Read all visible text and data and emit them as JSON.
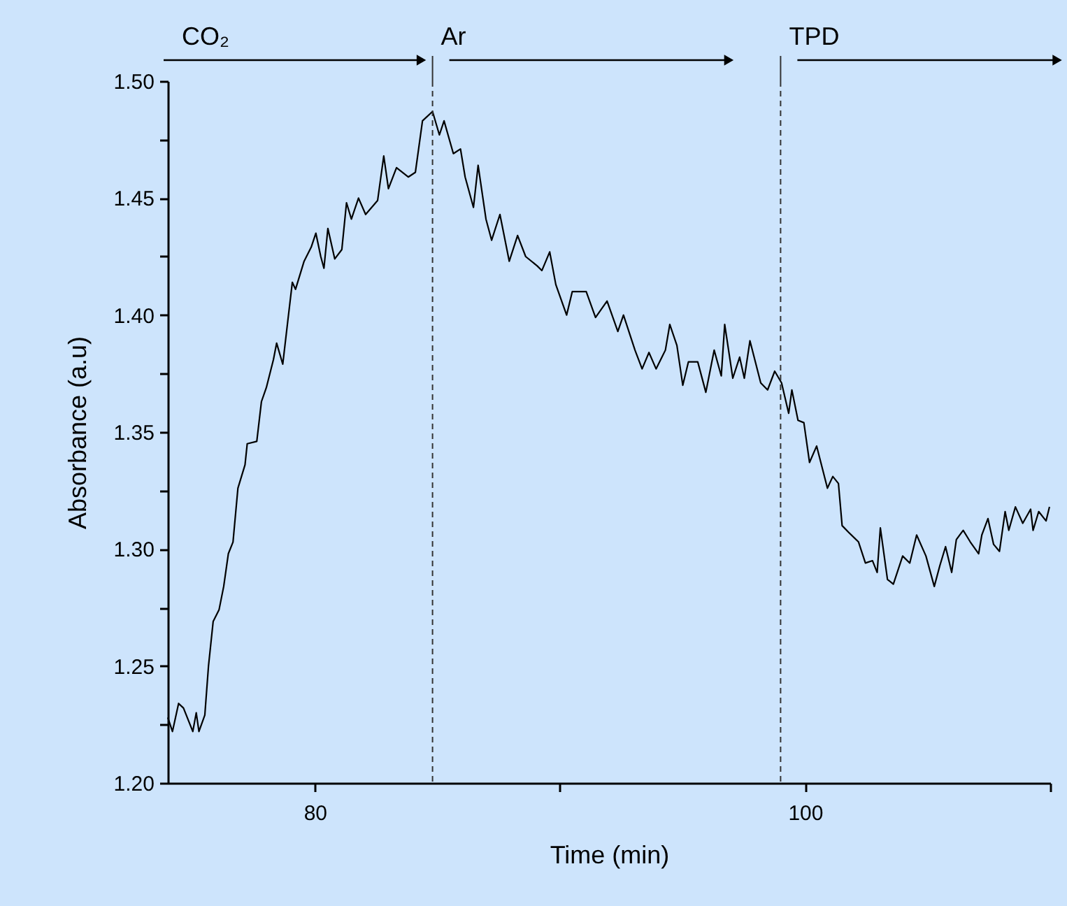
{
  "chart_data": {
    "type": "line",
    "xlabel": "Time (min)",
    "ylabel": "Absorbance (a.u)",
    "x": [
      74,
      74.19,
      74.44,
      74.64,
      75.02,
      75.16,
      75.27,
      75.51,
      75.66,
      75.85,
      76.09,
      76.28,
      76.47,
      76.66,
      76.86,
      77.15,
      77.24,
      77.63,
      77.82,
      78.02,
      78.31,
      78.44,
      78.69,
      78.89,
      79.08,
      79.21,
      79.56,
      79.85,
      80.04,
      80.24,
      80.37,
      80.53,
      80.81,
      81.1,
      81.29,
      81.49,
      81.78,
      82.07,
      82.56,
      82.81,
      83.0,
      83.33,
      83.81,
      84.1,
      84.39,
      84.8,
      85.08,
      85.27,
      85.65,
      85.94,
      86.13,
      86.47,
      86.66,
      86.98,
      87.21,
      87.55,
      87.93,
      88.27,
      88.6,
      89.07,
      89.26,
      89.58,
      89.83,
      90.27,
      90.5,
      91.07,
      91.45,
      91.92,
      92.36,
      92.59,
      93.06,
      93.35,
      93.63,
      93.92,
      94.3,
      94.48,
      94.77,
      95.01,
      95.24,
      95.62,
      95.95,
      96.29,
      96.58,
      96.72,
      97.05,
      97.33,
      97.52,
      97.75,
      98.19,
      98.47,
      98.76,
      99.04,
      99.33,
      99.46,
      99.71,
      99.95,
      100.18,
      100.47,
      100.91,
      101.13,
      101.36,
      101.51,
      101.79,
      102.18,
      102.46,
      102.75,
      102.94,
      103.07,
      103.36,
      103.6,
      103.98,
      104.27,
      104.55,
      104.93,
      105.27,
      105.5,
      105.73,
      105.98,
      106.17,
      106.45,
      106.74,
      107.08,
      107.21,
      107.46,
      107.69,
      107.93,
      108.16,
      108.31,
      108.58,
      108.88,
      109.2,
      109.3,
      109.53,
      109.83,
      109.97
    ],
    "series": [
      {
        "color": "#000000",
        "values": [
          1.228,
          1.222,
          1.234,
          1.232,
          1.222,
          1.23,
          1.222,
          1.229,
          1.25,
          1.269,
          1.274,
          1.284,
          1.298,
          1.303,
          1.326,
          1.336,
          1.345,
          1.346,
          1.363,
          1.369,
          1.381,
          1.388,
          1.379,
          1.397,
          1.414,
          1.411,
          1.423,
          1.429,
          1.435,
          1.425,
          1.42,
          1.437,
          1.424,
          1.428,
          1.448,
          1.441,
          1.45,
          1.443,
          1.449,
          1.468,
          1.454,
          1.463,
          1.459,
          1.461,
          1.483,
          1.487,
          1.477,
          1.483,
          1.469,
          1.471,
          1.459,
          1.446,
          1.464,
          1.441,
          1.432,
          1.443,
          1.423,
          1.434,
          1.425,
          1.421,
          1.419,
          1.427,
          1.413,
          1.4,
          1.41,
          1.41,
          1.399,
          1.406,
          1.393,
          1.4,
          1.385,
          1.377,
          1.384,
          1.377,
          1.385,
          1.396,
          1.387,
          1.37,
          1.38,
          1.38,
          1.367,
          1.385,
          1.374,
          1.396,
          1.373,
          1.382,
          1.373,
          1.389,
          1.371,
          1.368,
          1.376,
          1.371,
          1.358,
          1.368,
          1.355,
          1.354,
          1.337,
          1.344,
          1.326,
          1.331,
          1.328,
          1.31,
          1.307,
          1.303,
          1.294,
          1.295,
          1.29,
          1.309,
          1.287,
          1.285,
          1.297,
          1.294,
          1.306,
          1.297,
          1.284,
          1.293,
          1.301,
          1.29,
          1.304,
          1.308,
          1.303,
          1.298,
          1.306,
          1.313,
          1.302,
          1.299,
          1.316,
          1.308,
          1.318,
          1.311,
          1.317,
          1.308,
          1.316,
          1.312,
          1.318
        ]
      }
    ],
    "xlim": [
      74,
      110
    ],
    "xticks": [
      80,
      {
        "value": 90,
        "label": null
      },
      100,
      {
        "value": 110,
        "label": null
      }
    ],
    "ylim": [
      1.2,
      1.5
    ],
    "yticks": [
      {
        "value": 1.2,
        "label": "1.20"
      },
      {
        "value": 1.225,
        "label": null
      },
      {
        "value": 1.25,
        "label": "1.25"
      },
      {
        "value": 1.275,
        "label": null
      },
      {
        "value": 1.3,
        "label": "1.30"
      },
      {
        "value": 1.325,
        "label": null
      },
      {
        "value": 1.35,
        "label": "1.35"
      },
      {
        "value": 1.375,
        "label": null
      },
      {
        "value": 1.4,
        "label": "1.40"
      },
      {
        "value": 1.425,
        "label": null
      },
      {
        "value": 1.45,
        "label": "1.45"
      },
      {
        "value": 1.475,
        "label": null
      },
      {
        "value": 1.5,
        "label": "1.50"
      }
    ],
    "ref_lines": [
      {
        "axis": "x",
        "value": 84.8,
        "color": "#333333",
        "line_style": "dashed"
      },
      {
        "axis": "x",
        "value": 99.0,
        "color": "#333333",
        "line_style": "dashed"
      }
    ],
    "annotations": [
      "CO₂",
      "Ar",
      "TPD"
    ],
    "grid": false,
    "marker": "none",
    "line_style": "solid"
  }
}
